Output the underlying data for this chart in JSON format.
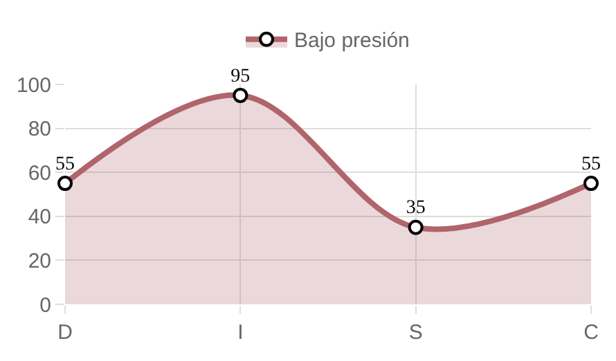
{
  "chart_data": {
    "type": "area",
    "categories": [
      "D",
      "I",
      "S",
      "C"
    ],
    "series": [
      {
        "name": "Bajo presión",
        "color": "#b0646c",
        "values": [
          55,
          95,
          35,
          55
        ]
      }
    ],
    "ylim": [
      0,
      100
    ],
    "yticks": [
      0,
      20,
      40,
      60,
      80,
      100
    ],
    "grid": true,
    "legend": "top",
    "marker": "circle",
    "line_style": "solid",
    "data_labels": true
  }
}
